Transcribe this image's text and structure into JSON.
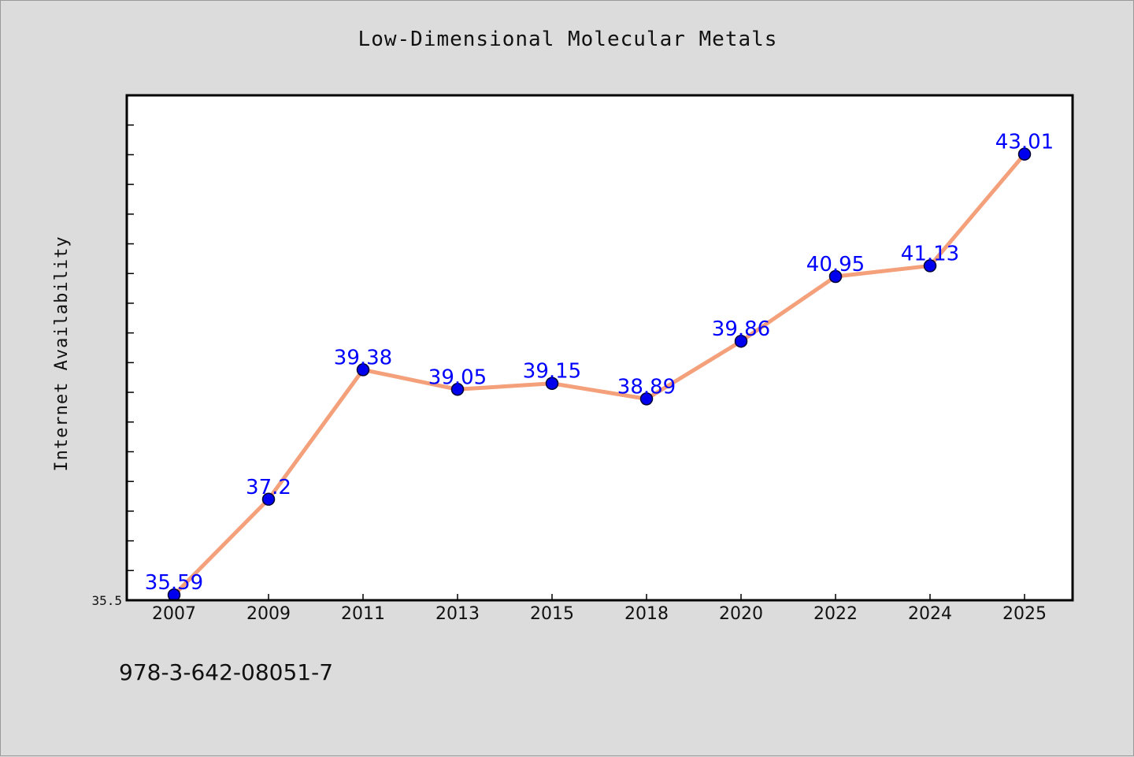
{
  "chart_data": {
    "type": "line",
    "title": "Low-Dimensional Molecular Metals",
    "xlabel": "",
    "ylabel": "Internet Availability",
    "categories": [
      "2007",
      "2009",
      "2011",
      "2013",
      "2015",
      "2018",
      "2020",
      "2022",
      "2024",
      "2025"
    ],
    "series": [
      {
        "values": [
          35.59,
          37.2,
          39.38,
          39.05,
          39.15,
          38.89,
          39.86,
          40.95,
          41.13,
          43.01
        ],
        "line_color": "#f4a07a",
        "marker_color": "#0000ee",
        "label_color": "#0000ff"
      }
    ],
    "data_labels": [
      "35.59",
      "37.2",
      "39.38",
      "39.05",
      "39.15",
      "38.89",
      "39.86",
      "40.95",
      "41.13",
      "43.01"
    ],
    "y_tick_labels": [
      "35.5"
    ],
    "ylim": [
      35.5,
      44.0
    ],
    "y_minor_step": 0.5,
    "grid": false,
    "background": "#dcdcdc",
    "plot_background": "#ffffff"
  },
  "footer": {
    "code": "978-3-642-08051-7"
  }
}
